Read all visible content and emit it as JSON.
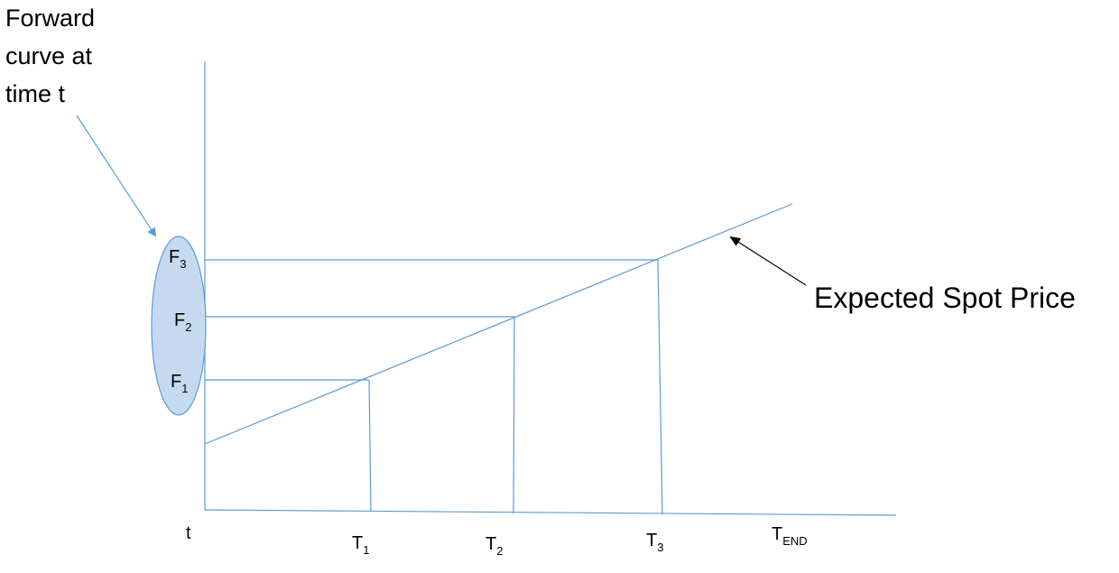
{
  "annotation": {
    "line1": "Forward",
    "line2": "curve at",
    "line3": "time t"
  },
  "callout": "Expected Spot Price",
  "forward_labels": [
    {
      "base": "F",
      "sub": "3"
    },
    {
      "base": "F",
      "sub": "2"
    },
    {
      "base": "F",
      "sub": "1"
    }
  ],
  "axis_labels": [
    {
      "base": "t",
      "sub": ""
    },
    {
      "base": "T",
      "sub": "1"
    },
    {
      "base": "T",
      "sub": "2"
    },
    {
      "base": "T",
      "sub": "3"
    },
    {
      "base": "T",
      "sub": "END"
    }
  ],
  "colors": {
    "line": "#5b9bd5",
    "ellipse_fill": "#c5daf0",
    "ellipse_stroke": "#5b9bd5",
    "arrow_dark": "#000000"
  }
}
